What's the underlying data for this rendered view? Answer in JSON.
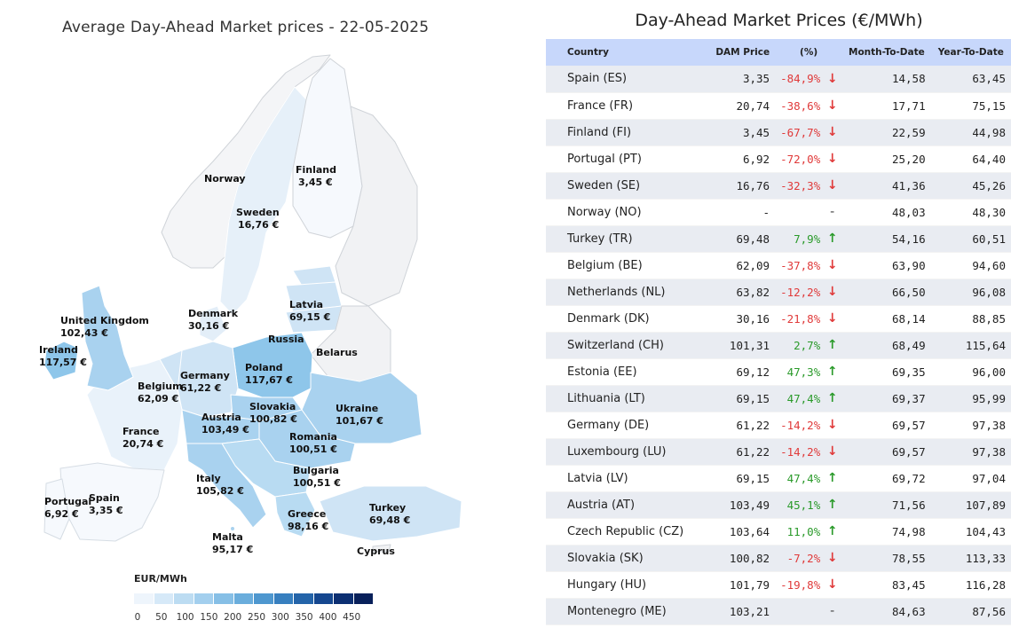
{
  "map": {
    "title": "Average Day-Ahead Market prices - 22-05-2025",
    "labels": {
      "finland": {
        "name": "Finland",
        "price": "3,45 €"
      },
      "norway": {
        "name": "Norway"
      },
      "sweden": {
        "name": "Sweden",
        "price": "16,76 €"
      },
      "latvia": {
        "name": "Latvia",
        "price": "69,15 €"
      },
      "denmark": {
        "name": "Denmark",
        "price": "30,16 €"
      },
      "russia": {
        "name": "Russia"
      },
      "belarus": {
        "name": "Belarus"
      },
      "uk": {
        "name": "United Kingdom",
        "price": "102,43 €"
      },
      "ireland": {
        "name": "Ireland",
        "price": "117,57 €"
      },
      "poland": {
        "name": "Poland",
        "price": "117,67 €"
      },
      "germany": {
        "name": "Germany",
        "price": "61,22 €"
      },
      "belgium": {
        "name": "Belgium",
        "price": "62,09 €"
      },
      "slovakia": {
        "name": "Slovakia",
        "price": "100,82 €"
      },
      "ukraine": {
        "name": "Ukraine",
        "price": "101,67 €"
      },
      "austria": {
        "name": "Austria",
        "price": "103,49 €"
      },
      "france": {
        "name": "France",
        "price": "20,74 €"
      },
      "romania": {
        "name": "Romania",
        "price": "100,51 €"
      },
      "bulgaria": {
        "name": "Bulgaria",
        "price": "100,51 €"
      },
      "italy": {
        "name": "Italy",
        "price": "105,82 €"
      },
      "portugal": {
        "name": "Portugal",
        "price": "6,92 €"
      },
      "spain": {
        "name": "Spain",
        "price": "3,35 €"
      },
      "greece": {
        "name": "Greece",
        "price": "98,16 €"
      },
      "turkey": {
        "name": "Turkey",
        "price": "69,48 €"
      },
      "malta": {
        "name": "Malta",
        "price": "95,17 €"
      },
      "cyprus": {
        "name": "Cyprus"
      }
    },
    "legend": {
      "title": "EUR/MWh",
      "ticks": [
        "0",
        "50",
        "100",
        "150",
        "200",
        "250",
        "300",
        "350",
        "400",
        "450"
      ],
      "colors": [
        "#eef5fc",
        "#d6e9f8",
        "#bcdcf2",
        "#a3cfee",
        "#86bfe6",
        "#6aaddc",
        "#4e97cf",
        "#377fbf",
        "#2464a9",
        "#15478f",
        "#0c2f72",
        "#08205a"
      ]
    }
  },
  "table": {
    "title": "Day-Ahead Market Prices (€/MWh)",
    "headers": {
      "country": "Country",
      "dam": "DAM Price",
      "pct": "(%)",
      "mtd": "Month-To-Date",
      "ytd": "Year-To-Date"
    },
    "rows": [
      {
        "country": "Spain (ES)",
        "dam": "3,35",
        "pct": "-84,9%",
        "dir": "down",
        "mtd": "14,58",
        "ytd": "63,45"
      },
      {
        "country": "France (FR)",
        "dam": "20,74",
        "pct": "-38,6%",
        "dir": "down",
        "mtd": "17,71",
        "ytd": "75,15"
      },
      {
        "country": "Finland (FI)",
        "dam": "3,45",
        "pct": "-67,7%",
        "dir": "down",
        "mtd": "22,59",
        "ytd": "44,98"
      },
      {
        "country": "Portugal (PT)",
        "dam": "6,92",
        "pct": "-72,0%",
        "dir": "down",
        "mtd": "25,20",
        "ytd": "64,40"
      },
      {
        "country": "Sweden (SE)",
        "dam": "16,76",
        "pct": "-32,3%",
        "dir": "down",
        "mtd": "41,36",
        "ytd": "45,26"
      },
      {
        "country": "Norway (NO)",
        "dam": "-",
        "pct": "",
        "dir": "none",
        "mtd": "48,03",
        "ytd": "48,30"
      },
      {
        "country": "Turkey (TR)",
        "dam": "69,48",
        "pct": "7,9%",
        "dir": "up",
        "mtd": "54,16",
        "ytd": "60,51"
      },
      {
        "country": "Belgium (BE)",
        "dam": "62,09",
        "pct": "-37,8%",
        "dir": "down",
        "mtd": "63,90",
        "ytd": "94,60"
      },
      {
        "country": "Netherlands (NL)",
        "dam": "63,82",
        "pct": "-12,2%",
        "dir": "down",
        "mtd": "66,50",
        "ytd": "96,08"
      },
      {
        "country": "Denmark (DK)",
        "dam": "30,16",
        "pct": "-21,8%",
        "dir": "down",
        "mtd": "68,14",
        "ytd": "88,85"
      },
      {
        "country": "Switzerland (CH)",
        "dam": "101,31",
        "pct": "2,7%",
        "dir": "up",
        "mtd": "68,49",
        "ytd": "115,64"
      },
      {
        "country": "Estonia (EE)",
        "dam": "69,12",
        "pct": "47,3%",
        "dir": "up",
        "mtd": "69,35",
        "ytd": "96,00"
      },
      {
        "country": "Lithuania (LT)",
        "dam": "69,15",
        "pct": "47,4%",
        "dir": "up",
        "mtd": "69,37",
        "ytd": "95,99"
      },
      {
        "country": "Germany (DE)",
        "dam": "61,22",
        "pct": "-14,2%",
        "dir": "down",
        "mtd": "69,57",
        "ytd": "97,38"
      },
      {
        "country": "Luxembourg (LU)",
        "dam": "61,22",
        "pct": "-14,2%",
        "dir": "down",
        "mtd": "69,57",
        "ytd": "97,38"
      },
      {
        "country": "Latvia (LV)",
        "dam": "69,15",
        "pct": "47,4%",
        "dir": "up",
        "mtd": "69,72",
        "ytd": "97,04"
      },
      {
        "country": "Austria (AT)",
        "dam": "103,49",
        "pct": "45,1%",
        "dir": "up",
        "mtd": "71,56",
        "ytd": "107,89"
      },
      {
        "country": "Czech Republic (CZ)",
        "dam": "103,64",
        "pct": "11,0%",
        "dir": "up",
        "mtd": "74,98",
        "ytd": "104,43"
      },
      {
        "country": "Slovakia (SK)",
        "dam": "100,82",
        "pct": "-7,2%",
        "dir": "down",
        "mtd": "78,55",
        "ytd": "113,33"
      },
      {
        "country": "Hungary (HU)",
        "dam": "101,79",
        "pct": "-19,8%",
        "dir": "down",
        "mtd": "83,45",
        "ytd": "116,28"
      },
      {
        "country": "Montenegro (ME)",
        "dam": "103,21",
        "pct": "",
        "dir": "none",
        "mtd": "84,63",
        "ytd": "87,56"
      }
    ]
  }
}
